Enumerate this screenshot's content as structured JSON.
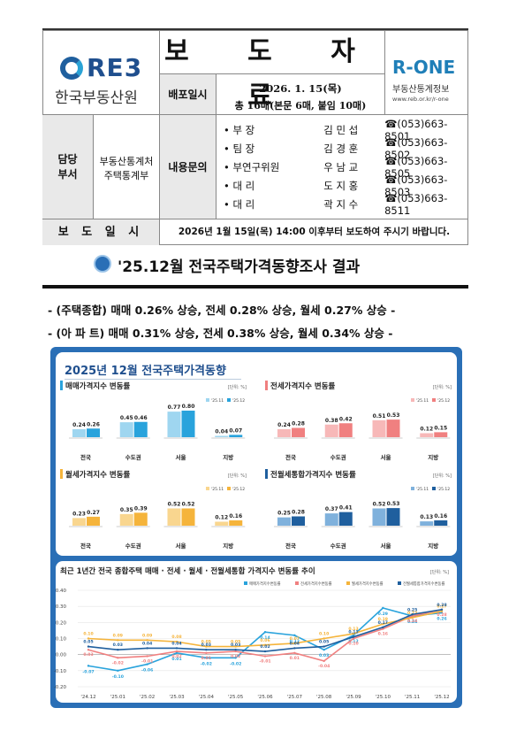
{
  "header": {
    "org_logo_text": "RE3",
    "org_name": "한국부동산원",
    "doc_title": "보 도 자 료",
    "release_label": "배포일시",
    "release_date": "2026. 1. 15(목)",
    "release_pages": "총 16매(본문 6매, 붙임 10매)",
    "rone_logo": "R-ONE",
    "rone_name": "부동산통계정보",
    "rone_url": "www.reb.or.kr/r-one",
    "dept_label": "담당\n부서",
    "dept_label_1": "담당",
    "dept_label_2": "부서",
    "dept_name_1": "부동산통계처",
    "dept_name_2": "주택통계부",
    "contact_label": "내용문의",
    "contacts": [
      {
        "title": "• 부 장",
        "name": "김 민 섭",
        "phone": "☎(053)663-8501"
      },
      {
        "title": "• 팀 장",
        "name": "김 경 훈",
        "phone": "☎(053)663-8502"
      },
      {
        "title": "• 부연구위원",
        "name": "우 남 교",
        "phone": "☎(053)663-8505"
      },
      {
        "title": "• 대 리",
        "name": "도 지 홍",
        "phone": "☎(053)663-8503"
      },
      {
        "title": "• 대 리",
        "name": "곽 지 수",
        "phone": "☎(053)663-8511"
      }
    ],
    "embargo_label": "보 도 일 시",
    "embargo_text": "2026년 1월 15일(목) 14:00 이후부터 보도하여 주시기 바랍니다."
  },
  "headline": "'25.12월 전국주택가격동향조사 결과",
  "summary_1": "- (주택종합) 매매 0.26% 상승, 전세 0.28% 상승, 월세 0.27% 상승 -",
  "summary_2": "- (아 파 트) 매매 0.31% 상승, 전세 0.38% 상승, 월세 0.34% 상승 -",
  "infographic_title": "2025년 12월 전국주택가격동향",
  "colors": {
    "blue_panel": "#2a6fb6",
    "sale": "#29a3dc",
    "jeonse": "#f08080",
    "wolse": "#f5b43b",
    "combined": "#1f5f9e"
  },
  "chart_data": [
    {
      "type": "bar",
      "title": "매매가격지수 변동률",
      "unit": "[단위: %]",
      "categories": [
        "전국",
        "수도권",
        "서울",
        "지방"
      ],
      "series": [
        {
          "name": "'25.11",
          "values": [
            0.24,
            0.45,
            0.77,
            0.04
          ]
        },
        {
          "name": "'25.12",
          "values": [
            0.26,
            0.46,
            0.8,
            0.07
          ]
        }
      ]
    },
    {
      "type": "bar",
      "title": "전세가격지수 변동률",
      "unit": "[단위: %]",
      "categories": [
        "전국",
        "수도권",
        "서울",
        "지방"
      ],
      "series": [
        {
          "name": "'25.11",
          "values": [
            0.24,
            0.38,
            0.51,
            0.12
          ]
        },
        {
          "name": "'25.12",
          "values": [
            0.28,
            0.42,
            0.53,
            0.15
          ]
        }
      ]
    },
    {
      "type": "bar",
      "title": "월세가격지수 변동률",
      "unit": "[단위: %]",
      "categories": [
        "전국",
        "수도권",
        "서울",
        "지방"
      ],
      "series": [
        {
          "name": "'25.11",
          "values": [
            0.23,
            0.35,
            0.52,
            0.12
          ]
        },
        {
          "name": "'25.12",
          "values": [
            0.27,
            0.39,
            0.52,
            0.16
          ]
        }
      ]
    },
    {
      "type": "bar",
      "title": "전월세통합가격지수 변동률",
      "unit": "[단위: %]",
      "categories": [
        "전국",
        "수도권",
        "서울",
        "지방"
      ],
      "series": [
        {
          "name": "'25.11",
          "values": [
            0.25,
            0.37,
            0.52,
            0.13
          ]
        },
        {
          "name": "'25.12",
          "values": [
            0.28,
            0.41,
            0.53,
            0.16
          ]
        }
      ]
    },
    {
      "type": "line",
      "title": "최근 1년간 전국 종합주택 매매 · 전세 · 월세 · 전월세통합 가격지수 변동률 추이",
      "unit": "[단위: %]",
      "x": [
        "'24.12",
        "'25.01",
        "'25.02",
        "'25.03",
        "'25.04",
        "'25.05",
        "'25.06",
        "'25.07",
        "'25.08",
        "'25.09",
        "'25.10",
        "'25.11",
        "'25.12"
      ],
      "ylim": [
        -0.2,
        0.4
      ],
      "yticks": [
        "0.40",
        "0.30",
        "0.20",
        "0.10",
        "0.00",
        "-0.10",
        "-0.20"
      ],
      "series": [
        {
          "name": "매매가격지수변동률",
          "values": [
            -0.07,
            -0.1,
            -0.06,
            0.01,
            -0.02,
            -0.02,
            0.14,
            0.12,
            0.03,
            0.12,
            0.29,
            0.24,
            0.26
          ]
        },
        {
          "name": "전세가격지수변동률",
          "values": [
            0.03,
            -0.02,
            -0.01,
            0.02,
            0.01,
            0.02,
            -0.01,
            0.01,
            -0.04,
            0.1,
            0.16,
            0.24,
            0.28
          ]
        },
        {
          "name": "월세가격지수변동률",
          "values": [
            0.1,
            0.09,
            0.09,
            0.08,
            0.05,
            0.05,
            0.06,
            0.07,
            0.1,
            0.13,
            0.19,
            0.23,
            0.27
          ]
        },
        {
          "name": "전월세통합가격지수변동률",
          "values": [
            0.05,
            0.03,
            0.04,
            0.04,
            0.03,
            0.03,
            0.02,
            0.04,
            0.05,
            0.11,
            0.17,
            0.25,
            0.28
          ]
        }
      ]
    }
  ]
}
